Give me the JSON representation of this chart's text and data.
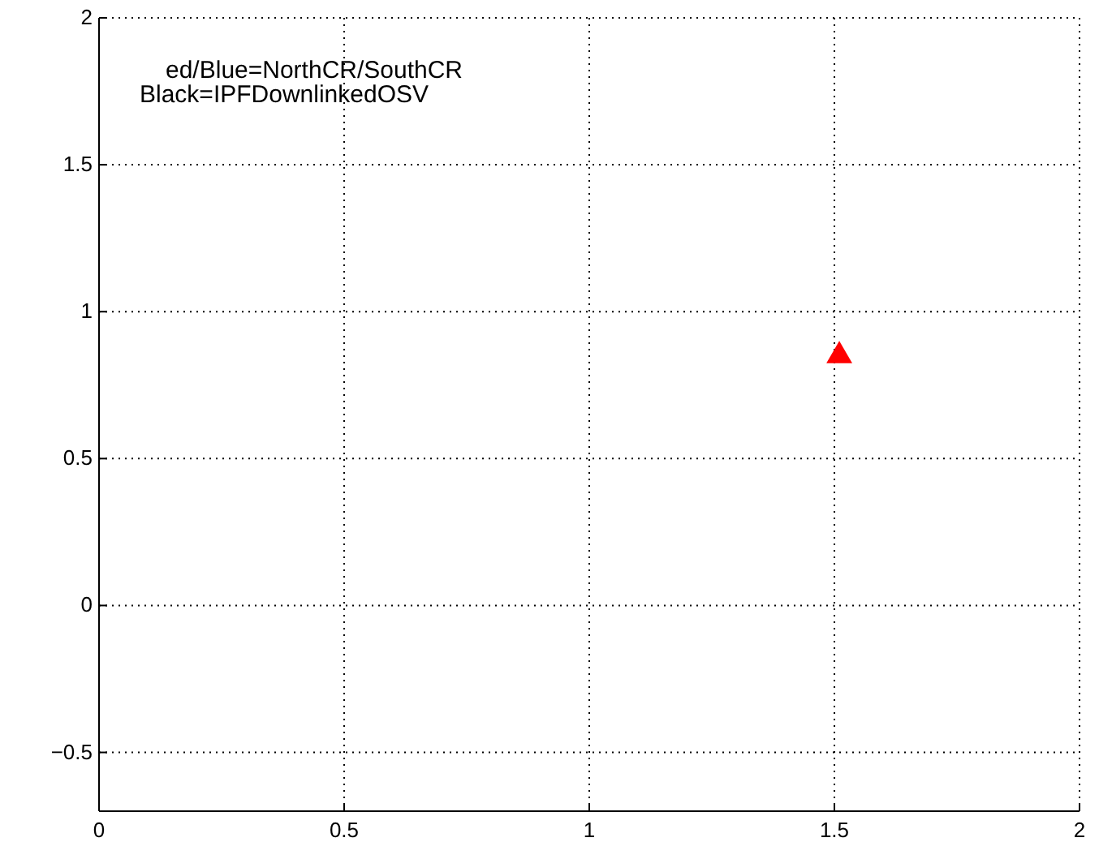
{
  "chart_data": {
    "type": "scatter",
    "annotations": [
      "ed/Blue=NorthCR/SouthCR",
      "Black=IPFDownlinkedOSV"
    ],
    "x": [
      1.51
    ],
    "series": [
      {
        "color": "#ff0000",
        "values": [
          0.85
        ]
      }
    ],
    "marker": "triangle",
    "xlim": [
      0,
      2
    ],
    "ylim": [
      -0.7,
      2
    ],
    "xticks": [
      0,
      0.5,
      1,
      1.5,
      2
    ],
    "yticks": [
      -0.5,
      0,
      0.5,
      1,
      1.5,
      2
    ],
    "grid": true
  }
}
